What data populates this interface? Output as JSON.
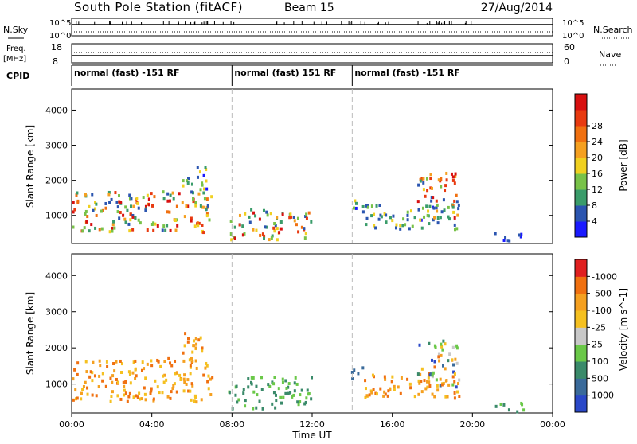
{
  "header": {
    "station": "South Pole Station (fitACF)",
    "beam": "Beam 15",
    "date": "27/Aug/2014"
  },
  "noise_panel": {
    "left_label": "N.Sky",
    "right_label": "N.Search",
    "left_ticks": [
      "10^5",
      "10^0"
    ],
    "right_ticks": [
      "10^5",
      "10^0"
    ]
  },
  "freq_panel": {
    "left_label_line1": "Freq.",
    "left_label_line2": "[MHz]",
    "right_label": "Nave",
    "left_ticks": [
      "18",
      "8"
    ],
    "right_ticks": [
      "60",
      "0"
    ]
  },
  "cpid": {
    "label": "CPID",
    "segments": [
      {
        "start_hour": 0,
        "label": "normal (fast) -151 RF"
      },
      {
        "start_hour": 8,
        "label": "normal (fast) 151 RF"
      },
      {
        "start_hour": 14,
        "label": "normal (fast) -151 RF"
      }
    ]
  },
  "chart_data": [
    {
      "type": "heatmap",
      "quantity": "power",
      "ylabel": "Slant Range [km]",
      "yticks": [
        1000,
        2000,
        3000,
        4000
      ],
      "ylim": [
        200,
        4600
      ],
      "colorbar_label": "Power [dB]",
      "colorbar_ticks": [
        "4",
        "8",
        "12",
        "16",
        "20",
        "24",
        "28"
      ],
      "colorbar_colors": [
        "#1a1aff",
        "#2b55b0",
        "#3a9c6a",
        "#78c248",
        "#f0d020",
        "#f5a020",
        "#f07010",
        "#e83a10",
        "#d81010"
      ],
      "echo_regions": [
        {
          "t0": 0.0,
          "t1": 7.0,
          "r0": 500,
          "r1": 1700,
          "level": "high"
        },
        {
          "t0": 5.5,
          "t1": 6.7,
          "r0": 1400,
          "r1": 2400,
          "level": "medium"
        },
        {
          "t0": 7.8,
          "t1": 8.3,
          "r0": 300,
          "r1": 1000,
          "level": "high"
        },
        {
          "t0": 8.3,
          "t1": 12.0,
          "r0": 300,
          "r1": 1200,
          "level": "high"
        },
        {
          "t0": 13.8,
          "t1": 14.5,
          "r0": 1100,
          "r1": 1500,
          "level": "medium"
        },
        {
          "t0": 14.5,
          "t1": 19.3,
          "r0": 600,
          "r1": 1300,
          "level": "medium"
        },
        {
          "t0": 17.2,
          "t1": 19.3,
          "r0": 900,
          "r1": 2200,
          "level": "high"
        },
        {
          "t0": 21.0,
          "t1": 22.5,
          "r0": 200,
          "r1": 500,
          "level": "low"
        }
      ]
    },
    {
      "type": "heatmap",
      "quantity": "velocity",
      "ylabel": "Slant Range [km]",
      "yticks": [
        1000,
        2000,
        3000,
        4000
      ],
      "ylim": [
        200,
        4600
      ],
      "xlabel": "Time UT",
      "xticks": [
        "00:00",
        "04:00",
        "08:00",
        "12:00",
        "16:00",
        "20:00",
        "00:00"
      ],
      "colorbar_label": "Velocity [m s^-1]",
      "colorbar_ticks": [
        "1000",
        "500",
        "100",
        "25",
        "-25",
        "-100",
        "-500",
        "-1000"
      ],
      "colorbar_colors": [
        "#2a48c8",
        "#3a6a9a",
        "#3a8a6a",
        "#6ac848",
        "#c8c8c8",
        "#f5c020",
        "#f5a020",
        "#f07010",
        "#e02020"
      ],
      "echo_regions": [
        {
          "t0": 0.0,
          "t1": 7.0,
          "r0": 500,
          "r1": 1700,
          "level": "negative"
        },
        {
          "t0": 5.5,
          "t1": 6.7,
          "r0": 1400,
          "r1": 2400,
          "level": "negative"
        },
        {
          "t0": 7.8,
          "t1": 12.0,
          "r0": 300,
          "r1": 1200,
          "level": "positive-small"
        },
        {
          "t0": 13.8,
          "t1": 14.5,
          "r0": 1100,
          "r1": 1500,
          "level": "positive"
        },
        {
          "t0": 14.5,
          "t1": 19.3,
          "r0": 600,
          "r1": 1300,
          "level": "negative"
        },
        {
          "t0": 17.2,
          "t1": 19.3,
          "r0": 900,
          "r1": 2200,
          "level": "mixed"
        },
        {
          "t0": 21.0,
          "t1": 22.5,
          "r0": 200,
          "r1": 500,
          "level": "positive-small"
        }
      ]
    }
  ]
}
